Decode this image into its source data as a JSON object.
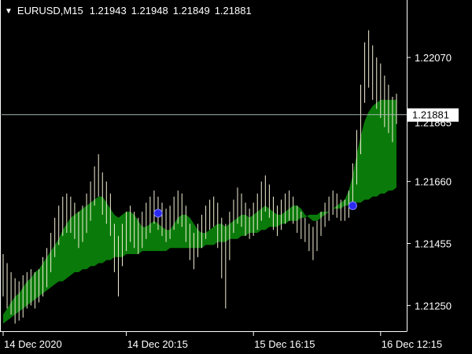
{
  "header": {
    "menu_icon": "triangle-down-icon",
    "symbol": "EURUSD,M15",
    "open": "1.21943",
    "high": "1.21948",
    "low": "1.21849",
    "close": "1.21881"
  },
  "colors": {
    "background": "#000000",
    "axis": "#ffffff",
    "price_bars": "#f5f0d6",
    "band_fill": "#0a7a0a",
    "bid_line": "#a8b8b0",
    "signal_marker": "#2a2af0",
    "price_label_bg": "#ffffff",
    "price_label_text": "#000000"
  },
  "chart_data": {
    "type": "ohlc",
    "yticks": [
      1.2207,
      1.2166,
      1.21455,
      1.2125
    ],
    "ytick_labels": [
      "1.22070",
      "1.21660",
      "1.21455",
      "1.21250"
    ],
    "ylim": [
      1.21165,
      1.2226
    ],
    "xticks": [
      {
        "index": 0,
        "label": "14 Dec 2020"
      },
      {
        "index": 31,
        "label": "14 Dec 20:15"
      },
      {
        "index": 63,
        "label": "15 Dec 16:15"
      },
      {
        "index": 95,
        "label": "16 Dec 12:15"
      }
    ],
    "bid_price": 1.21881,
    "bid_label": "1.21881",
    "hidden_tick_label": "1.21865",
    "bars": [
      {
        "h": 1.2142,
        "l": 1.2128
      },
      {
        "h": 1.2139,
        "l": 1.2124
      },
      {
        "h": 1.2136,
        "l": 1.2122
      },
      {
        "h": 1.2134,
        "l": 1.2119
      },
      {
        "h": 1.2133,
        "l": 1.212
      },
      {
        "h": 1.2135,
        "l": 1.2121
      },
      {
        "h": 1.2136,
        "l": 1.2124
      },
      {
        "h": 1.2137,
        "l": 1.2125
      },
      {
        "h": 1.2136,
        "l": 1.2124
      },
      {
        "h": 1.2137,
        "l": 1.2126
      },
      {
        "h": 1.2141,
        "l": 1.2128
      },
      {
        "h": 1.2144,
        "l": 1.2131
      },
      {
        "h": 1.2149,
        "l": 1.2136
      },
      {
        "h": 1.2154,
        "l": 1.2141
      },
      {
        "h": 1.2158,
        "l": 1.2145
      },
      {
        "h": 1.2161,
        "l": 1.2148
      },
      {
        "h": 1.2162,
        "l": 1.2149
      },
      {
        "h": 1.2161,
        "l": 1.2149
      },
      {
        "h": 1.2159,
        "l": 1.2147
      },
      {
        "h": 1.2156,
        "l": 1.2144
      },
      {
        "h": 1.2158,
        "l": 1.2146
      },
      {
        "h": 1.2162,
        "l": 1.2149
      },
      {
        "h": 1.2166,
        "l": 1.2153
      },
      {
        "h": 1.2171,
        "l": 1.2158
      },
      {
        "h": 1.2175,
        "l": 1.2161
      },
      {
        "h": 1.2169,
        "l": 1.2155
      },
      {
        "h": 1.2166,
        "l": 1.2152
      },
      {
        "h": 1.2162,
        "l": 1.2148
      },
      {
        "h": 1.2152,
        "l": 1.2136
      },
      {
        "h": 1.2148,
        "l": 1.2128
      },
      {
        "h": 1.2152,
        "l": 1.2138
      },
      {
        "h": 1.2156,
        "l": 1.2143
      },
      {
        "h": 1.2158,
        "l": 1.2146
      },
      {
        "h": 1.2156,
        "l": 1.2144
      },
      {
        "h": 1.2154,
        "l": 1.2142
      },
      {
        "h": 1.2156,
        "l": 1.2144
      },
      {
        "h": 1.2159,
        "l": 1.2147
      },
      {
        "h": 1.2161,
        "l": 1.2149
      },
      {
        "h": 1.2163,
        "l": 1.2152
      },
      {
        "h": 1.2161,
        "l": 1.215
      },
      {
        "h": 1.2159,
        "l": 1.2148
      },
      {
        "h": 1.2157,
        "l": 1.2146
      },
      {
        "h": 1.2158,
        "l": 1.2147
      },
      {
        "h": 1.2161,
        "l": 1.215
      },
      {
        "h": 1.2163,
        "l": 1.2152
      },
      {
        "h": 1.2162,
        "l": 1.2151
      },
      {
        "h": 1.2158,
        "l": 1.2146
      },
      {
        "h": 1.2152,
        "l": 1.214
      },
      {
        "h": 1.2149,
        "l": 1.2137
      },
      {
        "h": 1.2152,
        "l": 1.2141
      },
      {
        "h": 1.2155,
        "l": 1.2144
      },
      {
        "h": 1.2158,
        "l": 1.2147
      },
      {
        "h": 1.216,
        "l": 1.215
      },
      {
        "h": 1.2161,
        "l": 1.2151
      },
      {
        "h": 1.2159,
        "l": 1.2144
      },
      {
        "h": 1.2154,
        "l": 1.2134
      },
      {
        "h": 1.2152,
        "l": 1.2124
      },
      {
        "h": 1.2156,
        "l": 1.214
      },
      {
        "h": 1.216,
        "l": 1.2149
      },
      {
        "h": 1.2164,
        "l": 1.2152
      },
      {
        "h": 1.2162,
        "l": 1.2151
      },
      {
        "h": 1.2159,
        "l": 1.2148
      },
      {
        "h": 1.2157,
        "l": 1.2147
      },
      {
        "h": 1.2159,
        "l": 1.2148
      },
      {
        "h": 1.2162,
        "l": 1.215
      },
      {
        "h": 1.2166,
        "l": 1.2153
      },
      {
        "h": 1.2168,
        "l": 1.2156
      },
      {
        "h": 1.2165,
        "l": 1.2154
      },
      {
        "h": 1.2161,
        "l": 1.215
      },
      {
        "h": 1.2158,
        "l": 1.2148
      },
      {
        "h": 1.216,
        "l": 1.215
      },
      {
        "h": 1.2162,
        "l": 1.2152
      },
      {
        "h": 1.2163,
        "l": 1.2153
      },
      {
        "h": 1.2161,
        "l": 1.2152
      },
      {
        "h": 1.2158,
        "l": 1.2149
      },
      {
        "h": 1.2156,
        "l": 1.2147
      },
      {
        "h": 1.2154,
        "l": 1.2146
      },
      {
        "h": 1.2152,
        "l": 1.2143
      },
      {
        "h": 1.2151,
        "l": 1.214
      },
      {
        "h": 1.2153,
        "l": 1.2143
      },
      {
        "h": 1.2156,
        "l": 1.2148
      },
      {
        "h": 1.2159,
        "l": 1.2151
      },
      {
        "h": 1.2161,
        "l": 1.2153
      },
      {
        "h": 1.2163,
        "l": 1.2155
      },
      {
        "h": 1.2162,
        "l": 1.2154
      },
      {
        "h": 1.216,
        "l": 1.2153
      },
      {
        "h": 1.216,
        "l": 1.2153
      },
      {
        "h": 1.2163,
        "l": 1.2154
      },
      {
        "h": 1.2172,
        "l": 1.2158
      },
      {
        "h": 1.2183,
        "l": 1.2165
      },
      {
        "h": 1.2198,
        "l": 1.2175
      },
      {
        "h": 1.2212,
        "l": 1.2192
      },
      {
        "h": 1.2216,
        "l": 1.2197
      },
      {
        "h": 1.2211,
        "l": 1.2193
      },
      {
        "h": 1.2207,
        "l": 1.219
      },
      {
        "h": 1.2205,
        "l": 1.2187
      },
      {
        "h": 1.2201,
        "l": 1.2184
      },
      {
        "h": 1.2198,
        "l": 1.2182
      },
      {
        "h": 1.2194,
        "l": 1.2179
      },
      {
        "h": 1.2195,
        "l": 1.2185
      }
    ],
    "band_upper": [
      1.2122,
      1.2124,
      1.2126,
      1.2128,
      1.2129,
      1.2131,
      1.2133,
      1.2134,
      1.2136,
      1.2137,
      1.2139,
      1.2141,
      1.2143,
      1.2145,
      1.2147,
      1.215,
      1.2152,
      1.2154,
      1.2155,
      1.2156,
      1.2157,
      1.2158,
      1.2159,
      1.216,
      1.2161,
      1.2161,
      1.2159,
      1.2157,
      1.2155,
      1.2154,
      1.2155,
      1.2156,
      1.2156,
      1.2155,
      1.2153,
      1.2151,
      1.2151,
      1.2152,
      1.2153,
      1.2152,
      1.2151,
      1.215,
      1.215,
      1.2152,
      1.2154,
      1.2155,
      1.2155,
      1.2154,
      1.2152,
      1.215,
      1.2149,
      1.2149,
      1.215,
      1.2151,
      1.2152,
      1.2152,
      1.2151,
      1.2152,
      1.2153,
      1.2154,
      1.2155,
      1.2155,
      1.2154,
      1.2155,
      1.2156,
      1.2157,
      1.2158,
      1.2157,
      1.2156,
      1.2155,
      1.2155,
      1.2156,
      1.2157,
      1.2158,
      1.2158,
      1.2157,
      1.2155,
      1.2154,
      1.2153,
      1.2153,
      1.2154,
      1.2155,
      1.2156,
      1.2157,
      1.2158,
      1.2159,
      1.216,
      1.2163,
      1.2168,
      1.2175,
      1.2181,
      1.2186,
      1.2189,
      1.2191,
      1.2192,
      1.2193,
      1.2193,
      1.2193,
      1.2193,
      1.2193
    ],
    "band_lower": [
      1.2119,
      1.212,
      1.2121,
      1.2122,
      1.2123,
      1.2124,
      1.2125,
      1.2126,
      1.2127,
      1.2128,
      1.2129,
      1.213,
      1.2131,
      1.2132,
      1.2133,
      1.2133,
      1.2134,
      1.2135,
      1.2136,
      1.2136,
      1.2137,
      1.2137,
      1.2138,
      1.2138,
      1.2139,
      1.2139,
      1.214,
      1.214,
      1.2141,
      1.2141,
      1.2141,
      1.2142,
      1.2142,
      1.2142,
      1.2142,
      1.2143,
      1.2143,
      1.2143,
      1.2143,
      1.2143,
      1.2143,
      1.2143,
      1.2144,
      1.2144,
      1.2144,
      1.2144,
      1.2144,
      1.2144,
      1.2144,
      1.2144,
      1.2144,
      1.2145,
      1.2145,
      1.2145,
      1.2146,
      1.2146,
      1.2146,
      1.2147,
      1.2147,
      1.2147,
      1.2148,
      1.2148,
      1.2149,
      1.2149,
      1.2149,
      1.215,
      1.215,
      1.2151,
      1.2151,
      1.2151,
      1.2152,
      1.2152,
      1.2153,
      1.2153,
      1.2153,
      1.2154,
      1.2154,
      1.2155,
      1.2155,
      1.2155,
      1.2156,
      1.2156,
      1.2156,
      1.2157,
      1.2157,
      1.2157,
      1.2158,
      1.2158,
      1.2159,
      1.2159,
      1.2159,
      1.216,
      1.216,
      1.2161,
      1.2161,
      1.2162,
      1.2162,
      1.2163,
      1.2163,
      1.2164
    ],
    "signals": [
      {
        "index": 39,
        "price": 1.21555
      },
      {
        "index": 88,
        "price": 1.2158
      }
    ]
  }
}
